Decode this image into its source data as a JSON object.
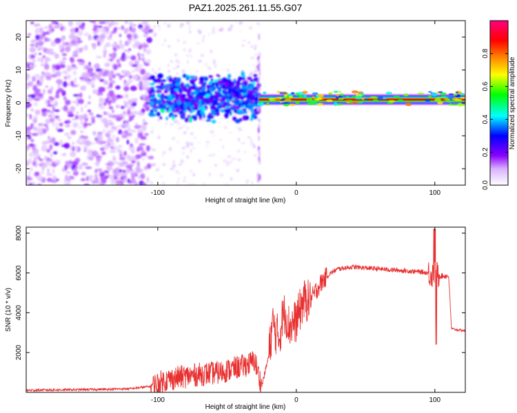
{
  "figure": {
    "title": "PAZ1.2025.261.11.55.G07"
  },
  "chart_data": [
    {
      "type": "heatmap",
      "xlabel": "Height of straight line (km)",
      "ylabel": "Frequency (Hz)",
      "xlim": [
        -195,
        122
      ],
      "ylim": [
        -25,
        25
      ],
      "xticks": [
        -100,
        0,
        100
      ],
      "yticks": [
        -20,
        -10,
        0,
        10,
        20
      ],
      "colorbar": {
        "label": "Normalized spectral amplitude",
        "range": [
          0,
          1
        ],
        "ticks": [
          0.0,
          0.2,
          0.4,
          0.6,
          0.8
        ],
        "colors": [
          "#ffffff",
          "#8a00ff",
          "#0000ff",
          "#00ffff",
          "#00ff00",
          "#ffff00",
          "#ff8000",
          "#ff0000",
          "#ff0080"
        ]
      },
      "regions": [
        {
          "name": "noise",
          "x": [
            -195,
            -105
          ],
          "freq_range": [
            -25,
            25
          ],
          "amplitude": 0.12
        },
        {
          "name": "turbulent",
          "x": [
            -105,
            -27
          ],
          "freq_range": [
            -6,
            9
          ],
          "amplitude": 0.3
        },
        {
          "name": "stable-tone",
          "x": [
            -27,
            122
          ],
          "frequency": 1,
          "amplitude": 0.9
        }
      ]
    },
    {
      "type": "line",
      "xlabel": "Height of straight line (km)",
      "ylabel": "SNR (10 * v/v)",
      "xlim": [
        -195,
        122
      ],
      "ylim": [
        0,
        8300
      ],
      "xticks": [
        -100,
        0,
        100
      ],
      "yticks": [
        2000,
        4000,
        6000,
        8000
      ],
      "color": "#e83030",
      "series": [
        {
          "x": [
            -195,
            -180,
            -160,
            -140,
            -120,
            -105,
            -95,
            -85,
            -70,
            -55,
            -45,
            -35,
            -30,
            -25,
            -20,
            -17,
            -15,
            -12,
            -10,
            -8,
            -5,
            0,
            5,
            10,
            15,
            20,
            25,
            30,
            40,
            50,
            60,
            70,
            80,
            90,
            95,
            100,
            102,
            105,
            110,
            112,
            115,
            122
          ],
          "y": [
            100,
            120,
            130,
            150,
            180,
            300,
            600,
            750,
            900,
            1000,
            1200,
            1400,
            1600,
            300,
            1800,
            3500,
            3000,
            2800,
            3800,
            4000,
            3300,
            3600,
            4600,
            4600,
            5200,
            5700,
            6000,
            6200,
            6300,
            6250,
            6200,
            6150,
            6100,
            6050,
            6000,
            5900,
            5900,
            5850,
            5850,
            3200,
            3150,
            3100
          ]
        }
      ]
    }
  ]
}
